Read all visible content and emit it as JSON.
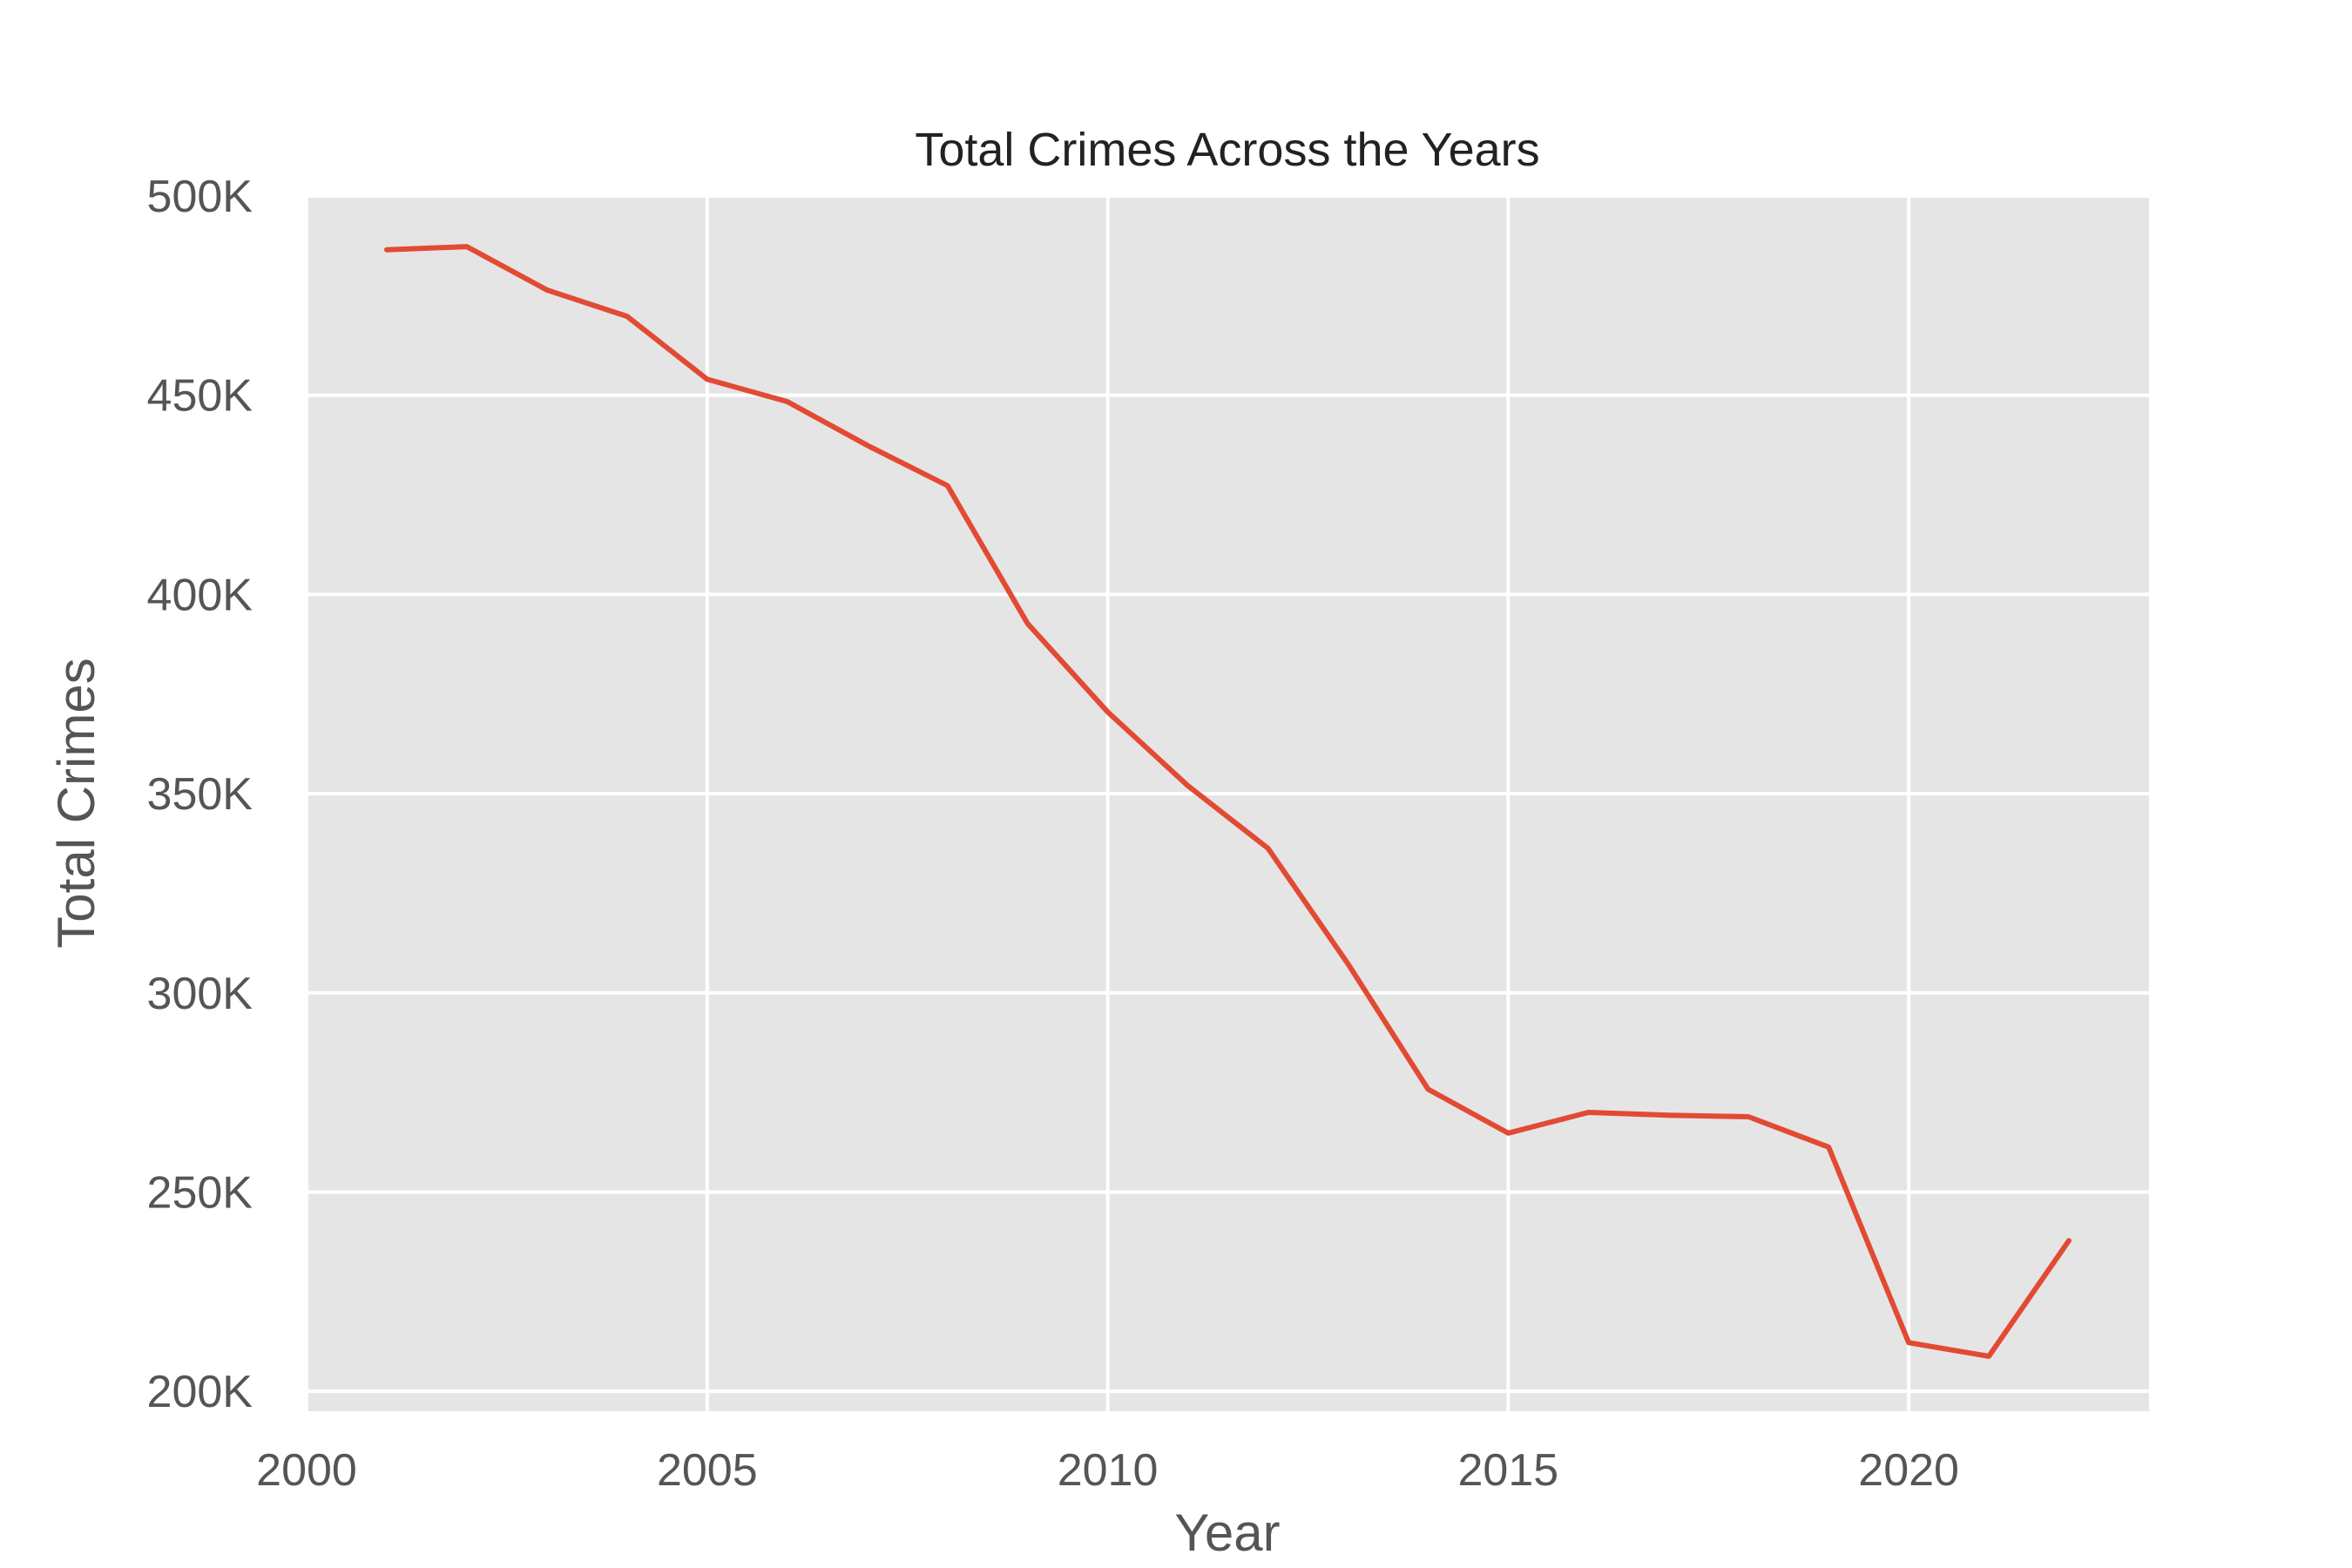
{
  "chart_data": {
    "type": "line",
    "title": "Total Crimes Across the Years",
    "xlabel": "Year",
    "ylabel": "Total Crimes",
    "xlim": [
      2000,
      2023
    ],
    "ylim": [
      195000,
      500000
    ],
    "grid": true,
    "x_ticks": [
      2000,
      2005,
      2010,
      2015,
      2020
    ],
    "x_tick_labels": [
      "2000",
      "2005",
      "2010",
      "2015",
      "2020"
    ],
    "y_ticks": [
      200000,
      250000,
      300000,
      350000,
      400000,
      450000,
      500000
    ],
    "y_tick_labels": [
      "200K",
      "250K",
      "300K",
      "350K",
      "400K",
      "450K",
      "500K"
    ],
    "x": [
      2001,
      2002,
      2003,
      2004,
      2005,
      2006,
      2007,
      2008,
      2009,
      2010,
      2011,
      2012,
      2013,
      2014,
      2015,
      2016,
      2017,
      2018,
      2019,
      2020,
      2021,
      2022
    ],
    "series": [
      {
        "values": [
          486500,
          487300,
          476400,
          469800,
          454000,
          448400,
          437400,
          427300,
          392700,
          370500,
          352000,
          336300,
          307300,
          275800,
          264800,
          270000,
          269300,
          268900,
          261300,
          212200,
          208800,
          237800
        ],
        "color": "#e24a33"
      }
    ],
    "colors": {
      "plot_background": "#e5e5e5",
      "grid": "#ffffff",
      "line": "#e24a33",
      "text": "#555555"
    }
  }
}
